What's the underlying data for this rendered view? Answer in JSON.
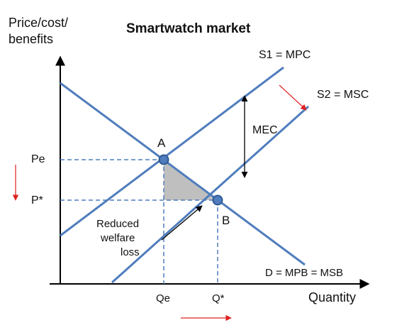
{
  "title": "Smartwatch market",
  "y_axis_label_line1": "Price/cost/",
  "y_axis_label_line2": "benefits",
  "x_axis_label": "Quantity",
  "curves": {
    "s1": "S1 = MPC",
    "s2": "S2 = MSC",
    "d": "D = MPB = MSB"
  },
  "points": {
    "a": "A",
    "b": "B"
  },
  "prices": {
    "pe": "Pe",
    "pstar": "P*"
  },
  "quantities": {
    "qe": "Qe",
    "qstar": "Q*"
  },
  "mec_label": "MEC",
  "welfare_loss": {
    "line1": "Reduced",
    "line2": "welfare",
    "line3": "loss"
  },
  "colors": {
    "curve": "#4f7dbd",
    "point_fill": "#4f7dbd",
    "point_stroke": "#2f5a94",
    "triangle": "#bfbfbf",
    "arrow_red": "#e02020",
    "axis": "#000000"
  }
}
